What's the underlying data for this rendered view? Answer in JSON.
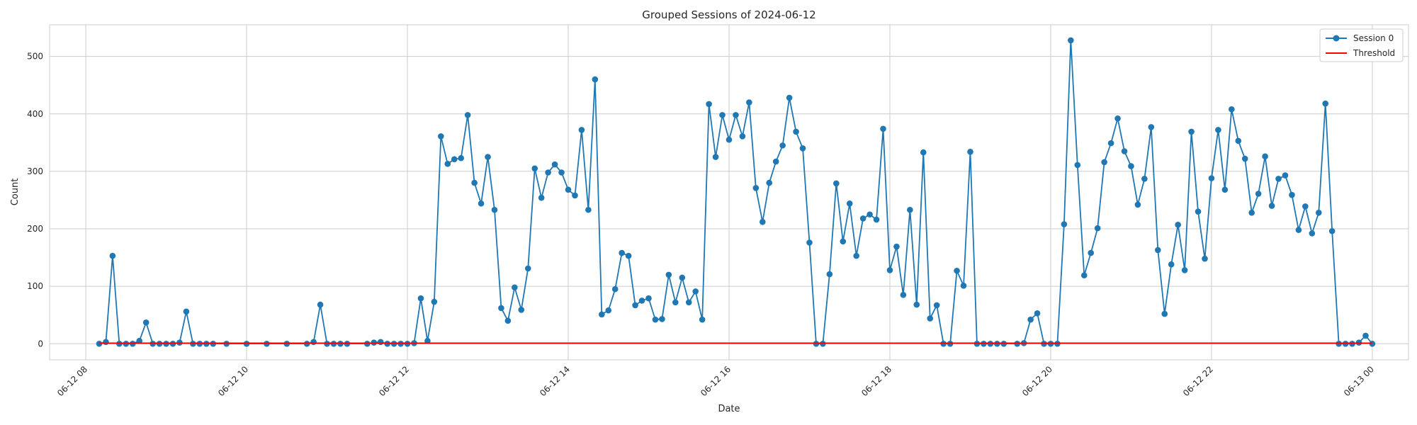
{
  "chart_data": {
    "type": "line",
    "title": "Grouped Sessions of 2024-06-12",
    "xlabel": "Date",
    "ylabel": "Count",
    "x_start": "2024-06-12 08:00",
    "x_end": "2024-06-13 00:00",
    "xlim": [
      "2024-06-12 07:33",
      "2024-06-13 00:27"
    ],
    "ylim": [
      -28,
      555
    ],
    "x_ticks": [
      {
        "at": "2024-06-12 08:00",
        "label": "06-12 08"
      },
      {
        "at": "2024-06-12 10:00",
        "label": "06-12 10"
      },
      {
        "at": "2024-06-12 12:00",
        "label": "06-12 12"
      },
      {
        "at": "2024-06-12 14:00",
        "label": "06-12 14"
      },
      {
        "at": "2024-06-12 16:00",
        "label": "06-12 16"
      },
      {
        "at": "2024-06-12 18:00",
        "label": "06-12 18"
      },
      {
        "at": "2024-06-12 20:00",
        "label": "06-12 20"
      },
      {
        "at": "2024-06-12 22:00",
        "label": "06-12 22"
      },
      {
        "at": "2024-06-13 00:00",
        "label": "06-13 00"
      }
    ],
    "y_ticks": [
      0,
      100,
      200,
      300,
      400,
      500
    ],
    "grid": true,
    "legend_position": "top-right",
    "series": [
      {
        "name": "Session 0",
        "color": "#1f77b4",
        "marker": "circle",
        "points": [
          [
            "2024-06-12 08:10",
            0
          ],
          [
            "2024-06-12 08:15",
            3
          ],
          [
            "2024-06-12 08:20",
            153
          ],
          [
            "2024-06-12 08:25",
            0
          ],
          [
            "2024-06-12 08:30",
            0
          ],
          [
            "2024-06-12 08:35",
            0
          ],
          [
            "2024-06-12 08:40",
            5
          ],
          [
            "2024-06-12 08:45",
            37
          ],
          [
            "2024-06-12 08:50",
            0
          ],
          [
            "2024-06-12 08:55",
            0
          ],
          [
            "2024-06-12 09:00",
            0
          ],
          [
            "2024-06-12 09:05",
            0
          ],
          [
            "2024-06-12 09:10",
            2
          ],
          [
            "2024-06-12 09:15",
            56
          ],
          [
            "2024-06-12 09:20",
            0
          ],
          [
            "2024-06-12 09:25",
            0
          ],
          [
            "2024-06-12 09:30",
            0
          ],
          [
            "2024-06-12 09:35",
            0
          ],
          [
            "2024-06-12 09:45",
            0
          ],
          [
            "2024-06-12 10:00",
            0
          ],
          [
            "2024-06-12 10:15",
            0
          ],
          [
            "2024-06-12 10:30",
            0
          ],
          [
            "2024-06-12 10:45",
            0
          ],
          [
            "2024-06-12 10:50",
            3
          ],
          [
            "2024-06-12 10:55",
            68
          ],
          [
            "2024-06-12 11:00",
            0
          ],
          [
            "2024-06-12 11:05",
            0
          ],
          [
            "2024-06-12 11:10",
            0
          ],
          [
            "2024-06-12 11:15",
            0
          ],
          [
            "2024-06-12 11:30",
            0
          ],
          [
            "2024-06-12 11:35",
            2
          ],
          [
            "2024-06-12 11:40",
            3
          ],
          [
            "2024-06-12 11:45",
            0
          ],
          [
            "2024-06-12 11:50",
            0
          ],
          [
            "2024-06-12 11:55",
            0
          ],
          [
            "2024-06-12 12:00",
            0
          ],
          [
            "2024-06-12 12:05",
            1
          ],
          [
            "2024-06-12 12:10",
            79
          ],
          [
            "2024-06-12 12:15",
            5
          ],
          [
            "2024-06-12 12:20",
            73
          ],
          [
            "2024-06-12 12:25",
            361
          ],
          [
            "2024-06-12 12:30",
            313
          ],
          [
            "2024-06-12 12:35",
            321
          ],
          [
            "2024-06-12 12:40",
            323
          ],
          [
            "2024-06-12 12:45",
            398
          ],
          [
            "2024-06-12 12:50",
            280
          ],
          [
            "2024-06-12 12:55",
            244
          ],
          [
            "2024-06-12 13:00",
            325
          ],
          [
            "2024-06-12 13:05",
            233
          ],
          [
            "2024-06-12 13:10",
            62
          ],
          [
            "2024-06-12 13:15",
            40
          ],
          [
            "2024-06-12 13:20",
            98
          ],
          [
            "2024-06-12 13:25",
            59
          ],
          [
            "2024-06-12 13:30",
            131
          ],
          [
            "2024-06-12 13:35",
            305
          ],
          [
            "2024-06-12 13:40",
            254
          ],
          [
            "2024-06-12 13:45",
            298
          ],
          [
            "2024-06-12 13:50",
            312
          ],
          [
            "2024-06-12 13:55",
            298
          ],
          [
            "2024-06-12 14:00",
            268
          ],
          [
            "2024-06-12 14:05",
            258
          ],
          [
            "2024-06-12 14:10",
            372
          ],
          [
            "2024-06-12 14:15",
            233
          ],
          [
            "2024-06-12 14:20",
            460
          ],
          [
            "2024-06-12 14:25",
            51
          ],
          [
            "2024-06-12 14:30",
            58
          ],
          [
            "2024-06-12 14:35",
            95
          ],
          [
            "2024-06-12 14:40",
            158
          ],
          [
            "2024-06-12 14:45",
            153
          ],
          [
            "2024-06-12 14:50",
            67
          ],
          [
            "2024-06-12 14:55",
            75
          ],
          [
            "2024-06-12 15:00",
            79
          ],
          [
            "2024-06-12 15:05",
            42
          ],
          [
            "2024-06-12 15:10",
            43
          ],
          [
            "2024-06-12 15:15",
            120
          ],
          [
            "2024-06-12 15:20",
            72
          ],
          [
            "2024-06-12 15:25",
            115
          ],
          [
            "2024-06-12 15:30",
            72
          ],
          [
            "2024-06-12 15:35",
            91
          ],
          [
            "2024-06-12 15:40",
            42
          ],
          [
            "2024-06-12 15:45",
            417
          ],
          [
            "2024-06-12 15:50",
            325
          ],
          [
            "2024-06-12 15:55",
            398
          ],
          [
            "2024-06-12 16:00",
            355
          ],
          [
            "2024-06-12 16:05",
            398
          ],
          [
            "2024-06-12 16:10",
            361
          ],
          [
            "2024-06-12 16:15",
            420
          ],
          [
            "2024-06-12 16:20",
            271
          ],
          [
            "2024-06-12 16:25",
            212
          ],
          [
            "2024-06-12 16:30",
            280
          ],
          [
            "2024-06-12 16:35",
            317
          ],
          [
            "2024-06-12 16:40",
            345
          ],
          [
            "2024-06-12 16:45",
            428
          ],
          [
            "2024-06-12 16:50",
            369
          ],
          [
            "2024-06-12 16:55",
            340
          ],
          [
            "2024-06-12 17:00",
            176
          ],
          [
            "2024-06-12 17:05",
            0
          ],
          [
            "2024-06-12 17:10",
            0
          ],
          [
            "2024-06-12 17:15",
            121
          ],
          [
            "2024-06-12 17:20",
            279
          ],
          [
            "2024-06-12 17:25",
            178
          ],
          [
            "2024-06-12 17:30",
            244
          ],
          [
            "2024-06-12 17:35",
            153
          ],
          [
            "2024-06-12 17:40",
            218
          ],
          [
            "2024-06-12 17:45",
            225
          ],
          [
            "2024-06-12 17:50",
            216
          ],
          [
            "2024-06-12 17:55",
            374
          ],
          [
            "2024-06-12 18:00",
            128
          ],
          [
            "2024-06-12 18:05",
            169
          ],
          [
            "2024-06-12 18:10",
            85
          ],
          [
            "2024-06-12 18:15",
            233
          ],
          [
            "2024-06-12 18:20",
            68
          ],
          [
            "2024-06-12 18:25",
            333
          ],
          [
            "2024-06-12 18:30",
            44
          ],
          [
            "2024-06-12 18:35",
            67
          ],
          [
            "2024-06-12 18:40",
            0
          ],
          [
            "2024-06-12 18:45",
            0
          ],
          [
            "2024-06-12 18:50",
            127
          ],
          [
            "2024-06-12 18:55",
            101
          ],
          [
            "2024-06-12 19:00",
            334
          ],
          [
            "2024-06-12 19:05",
            0
          ],
          [
            "2024-06-12 19:10",
            0
          ],
          [
            "2024-06-12 19:15",
            0
          ],
          [
            "2024-06-12 19:20",
            0
          ],
          [
            "2024-06-12 19:25",
            0
          ],
          [
            "2024-06-12 19:35",
            0
          ],
          [
            "2024-06-12 19:40",
            1
          ],
          [
            "2024-06-12 19:45",
            42
          ],
          [
            "2024-06-12 19:50",
            53
          ],
          [
            "2024-06-12 19:55",
            0
          ],
          [
            "2024-06-12 20:00",
            0
          ],
          [
            "2024-06-12 20:05",
            0
          ],
          [
            "2024-06-12 20:10",
            208
          ],
          [
            "2024-06-12 20:15",
            528
          ],
          [
            "2024-06-12 20:20",
            311
          ],
          [
            "2024-06-12 20:25",
            119
          ],
          [
            "2024-06-12 20:30",
            158
          ],
          [
            "2024-06-12 20:35",
            201
          ],
          [
            "2024-06-12 20:40",
            316
          ],
          [
            "2024-06-12 20:45",
            349
          ],
          [
            "2024-06-12 20:50",
            392
          ],
          [
            "2024-06-12 20:55",
            335
          ],
          [
            "2024-06-12 21:00",
            309
          ],
          [
            "2024-06-12 21:05",
            242
          ],
          [
            "2024-06-12 21:10",
            287
          ],
          [
            "2024-06-12 21:15",
            377
          ],
          [
            "2024-06-12 21:20",
            163
          ],
          [
            "2024-06-12 21:25",
            52
          ],
          [
            "2024-06-12 21:30",
            138
          ],
          [
            "2024-06-12 21:35",
            207
          ],
          [
            "2024-06-12 21:40",
            128
          ],
          [
            "2024-06-12 21:45",
            369
          ],
          [
            "2024-06-12 21:50",
            230
          ],
          [
            "2024-06-12 21:55",
            148
          ],
          [
            "2024-06-12 22:00",
            288
          ],
          [
            "2024-06-12 22:05",
            372
          ],
          [
            "2024-06-12 22:10",
            268
          ],
          [
            "2024-06-12 22:15",
            408
          ],
          [
            "2024-06-12 22:20",
            353
          ],
          [
            "2024-06-12 22:25",
            322
          ],
          [
            "2024-06-12 22:30",
            228
          ],
          [
            "2024-06-12 22:35",
            261
          ],
          [
            "2024-06-12 22:40",
            326
          ],
          [
            "2024-06-12 22:45",
            240
          ],
          [
            "2024-06-12 22:50",
            287
          ],
          [
            "2024-06-12 22:55",
            293
          ],
          [
            "2024-06-12 23:00",
            259
          ],
          [
            "2024-06-12 23:05",
            198
          ],
          [
            "2024-06-12 23:10",
            239
          ],
          [
            "2024-06-12 23:15",
            192
          ],
          [
            "2024-06-12 23:20",
            228
          ],
          [
            "2024-06-12 23:25",
            418
          ],
          [
            "2024-06-12 23:30",
            196
          ],
          [
            "2024-06-12 23:35",
            0
          ],
          [
            "2024-06-12 23:40",
            0
          ],
          [
            "2024-06-12 23:45",
            0
          ],
          [
            "2024-06-12 23:50",
            2
          ],
          [
            "2024-06-12 23:55",
            14
          ],
          [
            "2024-06-13 00:00",
            0
          ]
        ]
      },
      {
        "name": "Threshold",
        "color": "#ff0000",
        "marker": "none",
        "points": [
          [
            "2024-06-12 08:10",
            1
          ],
          [
            "2024-06-13 00:00",
            1
          ]
        ]
      }
    ]
  }
}
